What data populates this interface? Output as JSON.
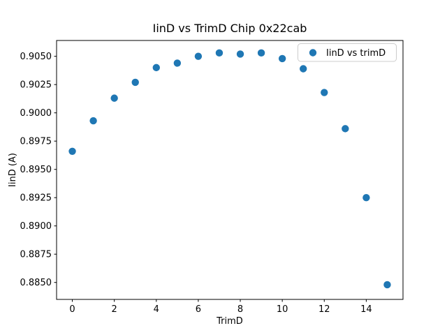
{
  "figure": {
    "background": "#ffffff"
  },
  "chart_data": {
    "type": "scatter",
    "title": "IinD vs TrimD Chip 0x22cab",
    "xlabel": "TrimD",
    "ylabel": "IinD (A)",
    "legend": [
      "IinD vs trimD"
    ],
    "legend_position": "upper right",
    "x": [
      0,
      1,
      2,
      3,
      4,
      5,
      6,
      7,
      8,
      9,
      10,
      11,
      12,
      13,
      14,
      15
    ],
    "y": [
      0.8966,
      0.8993,
      0.9013,
      0.9027,
      0.904,
      0.9044,
      0.905,
      0.9053,
      0.9052,
      0.9053,
      0.9048,
      0.9039,
      0.9018,
      0.8986,
      0.8925,
      0.8848
    ],
    "xlim": [
      -0.75,
      15.75
    ],
    "ylim": [
      0.8835,
      0.9064
    ],
    "xticks": {
      "values": [
        0,
        2,
        4,
        6,
        8,
        10,
        12,
        14
      ],
      "labels": [
        "0",
        "2",
        "4",
        "6",
        "8",
        "10",
        "12",
        "14"
      ]
    },
    "yticks": {
      "values": [
        0.885,
        0.8875,
        0.89,
        0.8925,
        0.895,
        0.8975,
        0.9,
        0.9025,
        0.905
      ],
      "labels": [
        "0.8850",
        "0.8875",
        "0.8900",
        "0.8925",
        "0.8950",
        "0.8975",
        "0.9000",
        "0.9025",
        "0.9050"
      ]
    },
    "marker_color": "#1f77b4",
    "grid": false
  }
}
